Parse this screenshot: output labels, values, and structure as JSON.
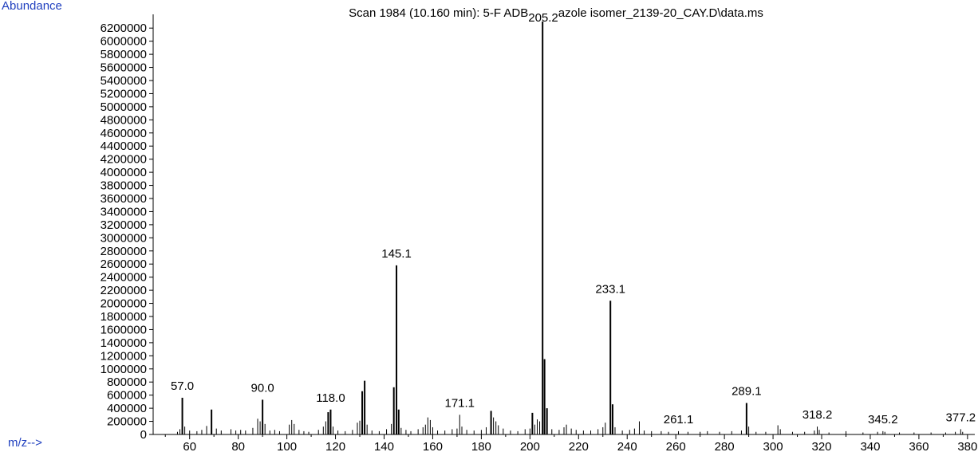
{
  "chart_data": {
    "type": "bar",
    "title_before": "Scan 1984 (10.160 min): 5-F ADB",
    "title_after": "azole isomer_2139-20_CAY.D\\data.ms",
    "ylabel": "Abundance",
    "xlabel": "m/z-->",
    "xlim": [
      45,
      383
    ],
    "ylim": [
      0,
      6300000
    ],
    "xticks": [
      60,
      80,
      100,
      120,
      140,
      160,
      180,
      200,
      220,
      240,
      260,
      280,
      300,
      320,
      340,
      360,
      380
    ],
    "yticks": [
      0,
      200000,
      400000,
      600000,
      800000,
      1000000,
      1200000,
      1400000,
      1600000,
      1800000,
      2000000,
      2200000,
      2400000,
      2600000,
      2800000,
      3000000,
      3200000,
      3400000,
      3600000,
      3800000,
      4000000,
      4200000,
      4400000,
      4600000,
      4800000,
      5000000,
      5200000,
      5400000,
      5600000,
      5800000,
      6000000,
      6200000
    ],
    "peaks": [
      {
        "mz": 55,
        "abundance": 40000
      },
      {
        "mz": 56,
        "abundance": 80000
      },
      {
        "mz": 57.0,
        "abundance": 560000,
        "label": "57.0"
      },
      {
        "mz": 58,
        "abundance": 120000
      },
      {
        "mz": 60,
        "abundance": 60000
      },
      {
        "mz": 63,
        "abundance": 50000
      },
      {
        "mz": 65,
        "abundance": 70000
      },
      {
        "mz": 67,
        "abundance": 130000
      },
      {
        "mz": 69,
        "abundance": 380000
      },
      {
        "mz": 71,
        "abundance": 90000
      },
      {
        "mz": 73,
        "abundance": 60000
      },
      {
        "mz": 77,
        "abundance": 80000
      },
      {
        "mz": 79,
        "abundance": 60000
      },
      {
        "mz": 81,
        "abundance": 70000
      },
      {
        "mz": 83,
        "abundance": 60000
      },
      {
        "mz": 86,
        "abundance": 100000
      },
      {
        "mz": 88,
        "abundance": 240000
      },
      {
        "mz": 89,
        "abundance": 200000
      },
      {
        "mz": 90.0,
        "abundance": 530000,
        "label": "90.0"
      },
      {
        "mz": 91,
        "abundance": 160000
      },
      {
        "mz": 93,
        "abundance": 60000
      },
      {
        "mz": 95,
        "abundance": 70000
      },
      {
        "mz": 97,
        "abundance": 50000
      },
      {
        "mz": 101,
        "abundance": 150000
      },
      {
        "mz": 102,
        "abundance": 220000
      },
      {
        "mz": 103,
        "abundance": 160000
      },
      {
        "mz": 105,
        "abundance": 70000
      },
      {
        "mz": 107,
        "abundance": 50000
      },
      {
        "mz": 109,
        "abundance": 40000
      },
      {
        "mz": 113,
        "abundance": 70000
      },
      {
        "mz": 115,
        "abundance": 120000
      },
      {
        "mz": 116,
        "abundance": 200000
      },
      {
        "mz": 117,
        "abundance": 340000
      },
      {
        "mz": 118.0,
        "abundance": 380000,
        "label": "118.0"
      },
      {
        "mz": 119,
        "abundance": 120000
      },
      {
        "mz": 121,
        "abundance": 60000
      },
      {
        "mz": 124,
        "abundance": 50000
      },
      {
        "mz": 127,
        "abundance": 70000
      },
      {
        "mz": 129,
        "abundance": 180000
      },
      {
        "mz": 130,
        "abundance": 210000
      },
      {
        "mz": 131,
        "abundance": 660000
      },
      {
        "mz": 132,
        "abundance": 820000
      },
      {
        "mz": 133,
        "abundance": 150000
      },
      {
        "mz": 135,
        "abundance": 60000
      },
      {
        "mz": 138,
        "abundance": 50000
      },
      {
        "mz": 141,
        "abundance": 80000
      },
      {
        "mz": 143,
        "abundance": 160000
      },
      {
        "mz": 144,
        "abundance": 720000
      },
      {
        "mz": 145.1,
        "abundance": 2580000,
        "label": "145.1"
      },
      {
        "mz": 146,
        "abundance": 380000
      },
      {
        "mz": 147,
        "abundance": 100000
      },
      {
        "mz": 149,
        "abundance": 70000
      },
      {
        "mz": 151,
        "abundance": 50000
      },
      {
        "mz": 154,
        "abundance": 80000
      },
      {
        "mz": 156,
        "abundance": 110000
      },
      {
        "mz": 157,
        "abundance": 150000
      },
      {
        "mz": 158,
        "abundance": 260000
      },
      {
        "mz": 159,
        "abundance": 220000
      },
      {
        "mz": 160,
        "abundance": 110000
      },
      {
        "mz": 162,
        "abundance": 60000
      },
      {
        "mz": 165,
        "abundance": 60000
      },
      {
        "mz": 168,
        "abundance": 80000
      },
      {
        "mz": 170,
        "abundance": 90000
      },
      {
        "mz": 171.1,
        "abundance": 300000,
        "label": "171.1"
      },
      {
        "mz": 172,
        "abundance": 120000
      },
      {
        "mz": 174,
        "abundance": 70000
      },
      {
        "mz": 177,
        "abundance": 60000
      },
      {
        "mz": 180,
        "abundance": 70000
      },
      {
        "mz": 182,
        "abundance": 110000
      },
      {
        "mz": 184,
        "abundance": 360000
      },
      {
        "mz": 185,
        "abundance": 260000
      },
      {
        "mz": 186,
        "abundance": 200000
      },
      {
        "mz": 187,
        "abundance": 140000
      },
      {
        "mz": 189,
        "abundance": 90000
      },
      {
        "mz": 192,
        "abundance": 60000
      },
      {
        "mz": 195,
        "abundance": 50000
      },
      {
        "mz": 198,
        "abundance": 80000
      },
      {
        "mz": 200,
        "abundance": 90000
      },
      {
        "mz": 201,
        "abundance": 330000
      },
      {
        "mz": 202,
        "abundance": 150000
      },
      {
        "mz": 203,
        "abundance": 230000
      },
      {
        "mz": 204,
        "abundance": 200000
      },
      {
        "mz": 205.2,
        "abundance": 6300000,
        "label": "205.2"
      },
      {
        "mz": 206,
        "abundance": 1150000
      },
      {
        "mz": 207,
        "abundance": 400000
      },
      {
        "mz": 209,
        "abundance": 80000
      },
      {
        "mz": 212,
        "abundance": 70000
      },
      {
        "mz": 214,
        "abundance": 110000
      },
      {
        "mz": 215,
        "abundance": 150000
      },
      {
        "mz": 217,
        "abundance": 90000
      },
      {
        "mz": 219,
        "abundance": 70000
      },
      {
        "mz": 222,
        "abundance": 60000
      },
      {
        "mz": 225,
        "abundance": 60000
      },
      {
        "mz": 228,
        "abundance": 80000
      },
      {
        "mz": 230,
        "abundance": 110000
      },
      {
        "mz": 231,
        "abundance": 180000
      },
      {
        "mz": 233.1,
        "abundance": 2040000,
        "label": "233.1"
      },
      {
        "mz": 234,
        "abundance": 460000
      },
      {
        "mz": 235,
        "abundance": 110000
      },
      {
        "mz": 238,
        "abundance": 60000
      },
      {
        "mz": 241,
        "abundance": 70000
      },
      {
        "mz": 243,
        "abundance": 90000
      },
      {
        "mz": 245,
        "abundance": 200000
      },
      {
        "mz": 247,
        "abundance": 60000
      },
      {
        "mz": 250,
        "abundance": 50000
      },
      {
        "mz": 254,
        "abundance": 50000
      },
      {
        "mz": 257,
        "abundance": 40000
      },
      {
        "mz": 261.1,
        "abundance": 50000,
        "label": "261.1"
      },
      {
        "mz": 265,
        "abundance": 40000
      },
      {
        "mz": 270,
        "abundance": 40000
      },
      {
        "mz": 273,
        "abundance": 50000
      },
      {
        "mz": 278,
        "abundance": 40000
      },
      {
        "mz": 283,
        "abundance": 50000
      },
      {
        "mz": 287,
        "abundance": 60000
      },
      {
        "mz": 289.1,
        "abundance": 480000,
        "label": "289.1"
      },
      {
        "mz": 290,
        "abundance": 120000
      },
      {
        "mz": 293,
        "abundance": 40000
      },
      {
        "mz": 297,
        "abundance": 40000
      },
      {
        "mz": 302,
        "abundance": 140000
      },
      {
        "mz": 303,
        "abundance": 80000
      },
      {
        "mz": 308,
        "abundance": 40000
      },
      {
        "mz": 313,
        "abundance": 40000
      },
      {
        "mz": 317,
        "abundance": 60000
      },
      {
        "mz": 318.2,
        "abundance": 120000,
        "label": "318.2"
      },
      {
        "mz": 319,
        "abundance": 70000
      },
      {
        "mz": 323,
        "abundance": 30000
      },
      {
        "mz": 330,
        "abundance": 50000
      },
      {
        "mz": 337,
        "abundance": 30000
      },
      {
        "mz": 343,
        "abundance": 40000
      },
      {
        "mz": 345.2,
        "abundance": 50000,
        "label": "345.2"
      },
      {
        "mz": 346,
        "abundance": 40000
      },
      {
        "mz": 352,
        "abundance": 30000
      },
      {
        "mz": 358,
        "abundance": 30000
      },
      {
        "mz": 365,
        "abundance": 30000
      },
      {
        "mz": 371,
        "abundance": 30000
      },
      {
        "mz": 375,
        "abundance": 40000
      },
      {
        "mz": 377.2,
        "abundance": 80000,
        "label": "377.2"
      },
      {
        "mz": 378,
        "abundance": 40000
      }
    ],
    "grid": false,
    "colors": {
      "axis_label": "#1f3fbf",
      "text": "#000000",
      "peaks": "#000000"
    }
  }
}
